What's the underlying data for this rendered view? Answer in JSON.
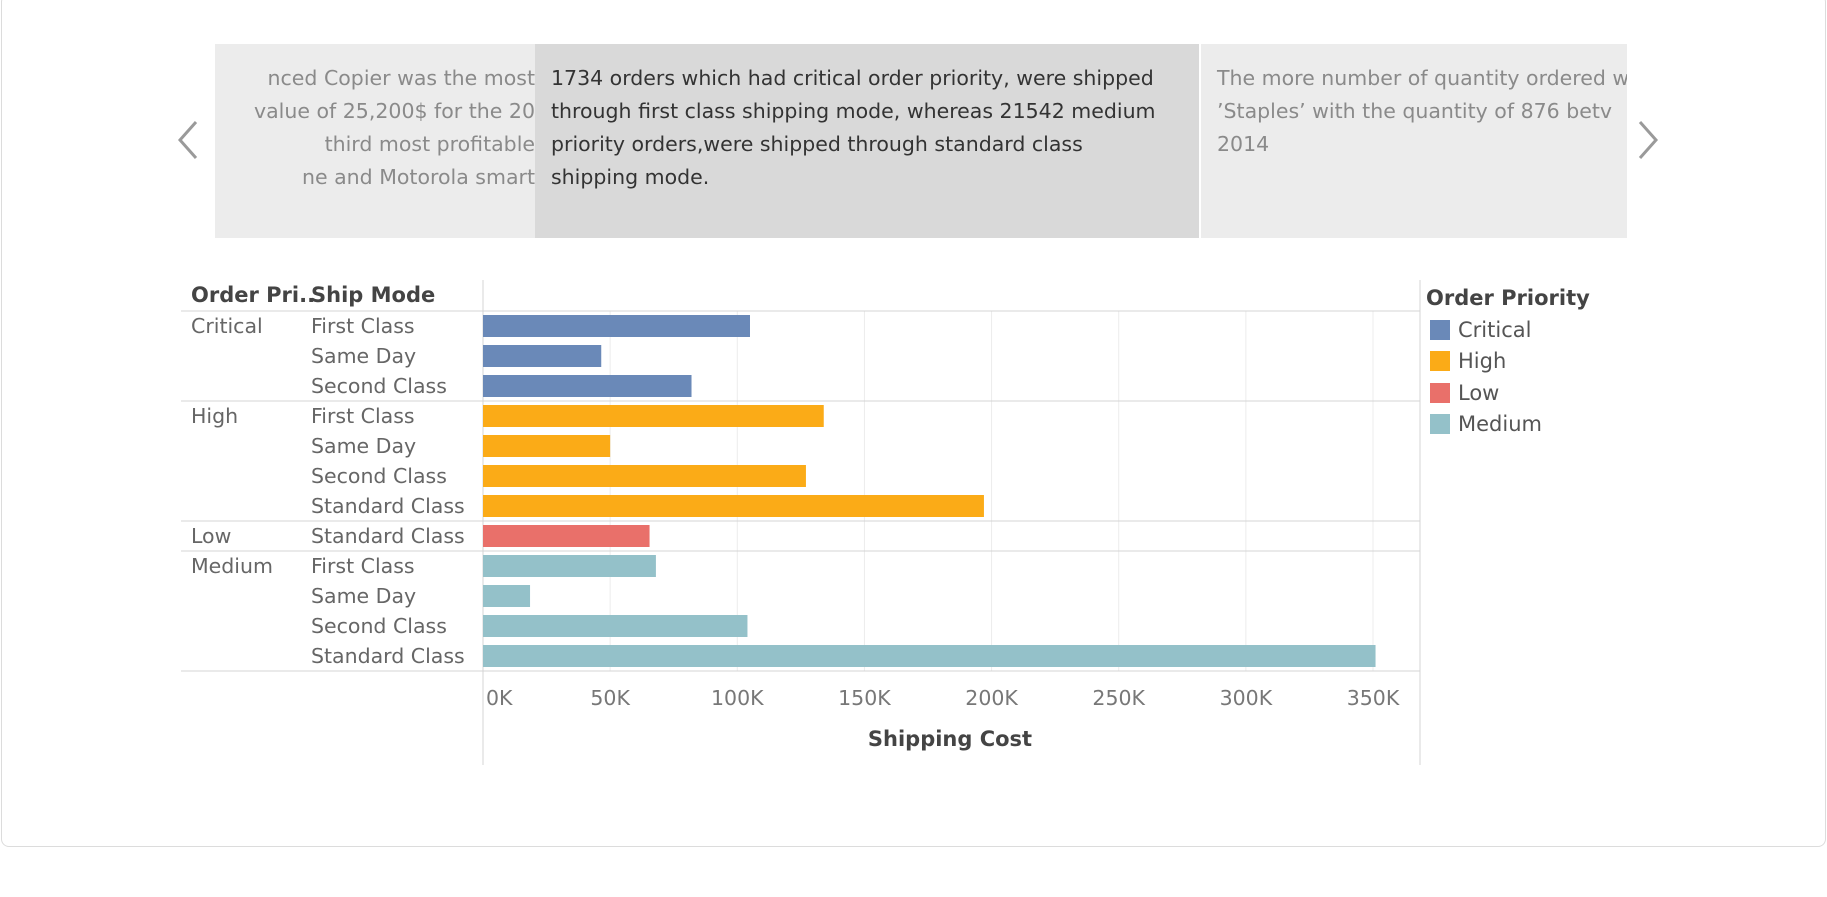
{
  "carousel": {
    "cards": [
      {
        "lines": [
          "nced Copier was the most",
          "value of 25,200$ for the 20",
          "third most profitable",
          "ne and Motorola smart"
        ]
      },
      {
        "lines": [
          "1734 orders which had critical order priority, were shipped",
          "through first class shipping mode, whereas 21542 medium",
          "priority orders,were shipped through standard class",
          "shipping mode."
        ]
      },
      {
        "lines": [
          "The more number of quantity ordered w",
          "’Staples’ with  the quantity of 876 betv",
          "2014"
        ]
      }
    ],
    "prev_icon": "chevron-left-icon",
    "next_icon": "chevron-right-icon"
  },
  "table_headers": {
    "col1": "Order Pri..",
    "col2": "Ship Mode"
  },
  "legend": {
    "title": "Order Priority",
    "items": [
      {
        "label": "Critical",
        "color": "#6a89b8"
      },
      {
        "label": "High",
        "color": "#fbab17"
      },
      {
        "label": "Low",
        "color": "#e9706a"
      },
      {
        "label": "Medium",
        "color": "#94c1c9"
      }
    ]
  },
  "chart_data": {
    "type": "bar",
    "orientation": "horizontal",
    "xlabel": "Shipping Cost",
    "xlim": [
      0,
      370000
    ],
    "x_ticks": [
      "0K",
      "50K",
      "100K",
      "150K",
      "200K",
      "250K",
      "300K",
      "350K"
    ],
    "x_tick_values": [
      0,
      50000,
      100000,
      150000,
      200000,
      250000,
      300000,
      350000
    ],
    "grid": true,
    "legend_position": "right",
    "groups": [
      {
        "name": "Critical",
        "color": "#6a89b8",
        "rows": [
          {
            "ship_mode": "First Class",
            "value": 105000
          },
          {
            "ship_mode": "Same Day",
            "value": 46500
          },
          {
            "ship_mode": "Second Class",
            "value": 82000
          }
        ]
      },
      {
        "name": "High",
        "color": "#fbab17",
        "rows": [
          {
            "ship_mode": "First Class",
            "value": 134000
          },
          {
            "ship_mode": "Same Day",
            "value": 50000
          },
          {
            "ship_mode": "Second Class",
            "value": 127000
          },
          {
            "ship_mode": "Standard Class",
            "value": 197000
          }
        ]
      },
      {
        "name": "Low",
        "color": "#e9706a",
        "rows": [
          {
            "ship_mode": "Standard Class",
            "value": 65500
          }
        ]
      },
      {
        "name": "Medium",
        "color": "#94c1c9",
        "rows": [
          {
            "ship_mode": "First Class",
            "value": 68000
          },
          {
            "ship_mode": "Same Day",
            "value": 18500
          },
          {
            "ship_mode": "Second Class",
            "value": 104000
          },
          {
            "ship_mode": "Standard Class",
            "value": 351000
          }
        ]
      }
    ]
  }
}
